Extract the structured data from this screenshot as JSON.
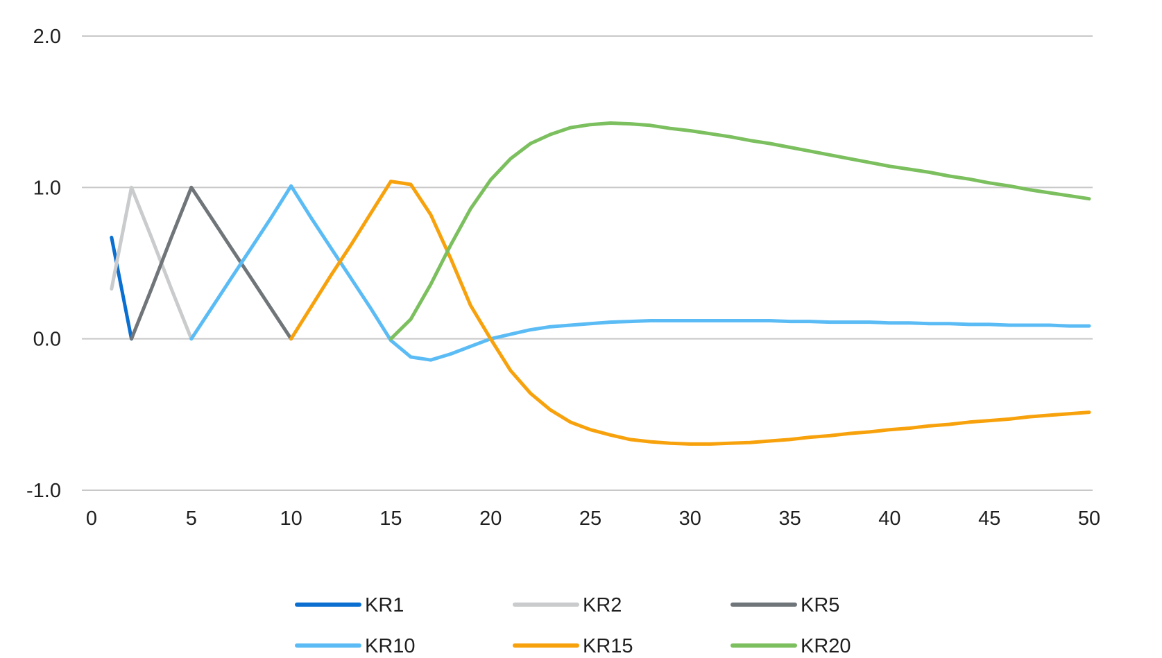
{
  "chart_data": {
    "type": "line",
    "title": "",
    "xlabel": "",
    "ylabel": "",
    "xlim": [
      0,
      50
    ],
    "ylim": [
      -1.0,
      2.0
    ],
    "x_ticks": [
      "0",
      "5",
      "10",
      "15",
      "20",
      "25",
      "30",
      "35",
      "40",
      "45",
      "50"
    ],
    "y_ticks": [
      "2.0",
      "1.0",
      "0.0",
      "-1.0"
    ],
    "grid": true,
    "legend_position": "bottom",
    "series": [
      {
        "name": "KR1",
        "color": "#0a6fd0",
        "points": [
          [
            1,
            0.67
          ],
          [
            2,
            0.0
          ]
        ]
      },
      {
        "name": "KR2",
        "color": "#c9cbcc",
        "points": [
          [
            1,
            0.33
          ],
          [
            2,
            1.0
          ],
          [
            3,
            0.67
          ],
          [
            4,
            0.33
          ],
          [
            5,
            0.0
          ]
        ]
      },
      {
        "name": "KR5",
        "color": "#6f7578",
        "points": [
          [
            2,
            0.0
          ],
          [
            3,
            0.33
          ],
          [
            4,
            0.67
          ],
          [
            5,
            1.0
          ],
          [
            6,
            0.8
          ],
          [
            7,
            0.6
          ],
          [
            8,
            0.4
          ],
          [
            9,
            0.2
          ],
          [
            10,
            0.0
          ]
        ]
      },
      {
        "name": "KR10",
        "color": "#5bbcf5",
        "points": [
          [
            5,
            0.0
          ],
          [
            6,
            0.2
          ],
          [
            7,
            0.4
          ],
          [
            8,
            0.6
          ],
          [
            9,
            0.8
          ],
          [
            10,
            1.01
          ],
          [
            11,
            0.8
          ],
          [
            12,
            0.6
          ],
          [
            13,
            0.4
          ],
          [
            14,
            0.2
          ],
          [
            15,
            -0.01
          ],
          [
            16,
            -0.12
          ],
          [
            17,
            -0.14
          ],
          [
            18,
            -0.1
          ],
          [
            19,
            -0.05
          ],
          [
            20,
            0.0
          ],
          [
            21,
            0.03
          ],
          [
            22,
            0.06
          ],
          [
            23,
            0.08
          ],
          [
            24,
            0.09
          ],
          [
            25,
            0.1
          ],
          [
            26,
            0.11
          ],
          [
            27,
            0.115
          ],
          [
            28,
            0.12
          ],
          [
            29,
            0.12
          ],
          [
            30,
            0.12
          ],
          [
            31,
            0.12
          ],
          [
            32,
            0.12
          ],
          [
            33,
            0.12
          ],
          [
            34,
            0.12
          ],
          [
            35,
            0.115
          ],
          [
            36,
            0.115
          ],
          [
            37,
            0.11
          ],
          [
            38,
            0.11
          ],
          [
            39,
            0.11
          ],
          [
            40,
            0.105
          ],
          [
            41,
            0.105
          ],
          [
            42,
            0.1
          ],
          [
            43,
            0.1
          ],
          [
            44,
            0.095
          ],
          [
            45,
            0.095
          ],
          [
            46,
            0.09
          ],
          [
            47,
            0.09
          ],
          [
            48,
            0.09
          ],
          [
            49,
            0.085
          ],
          [
            50,
            0.085
          ]
        ]
      },
      {
        "name": "KR15",
        "color": "#f7a20c",
        "points": [
          [
            10,
            0.0
          ],
          [
            11,
            0.21
          ],
          [
            12,
            0.42
          ],
          [
            13,
            0.62
          ],
          [
            14,
            0.83
          ],
          [
            15,
            1.04
          ],
          [
            16,
            1.02
          ],
          [
            17,
            0.82
          ],
          [
            18,
            0.53
          ],
          [
            19,
            0.22
          ],
          [
            20,
            0.0
          ],
          [
            21,
            -0.21
          ],
          [
            22,
            -0.36
          ],
          [
            23,
            -0.47
          ],
          [
            24,
            -0.55
          ],
          [
            25,
            -0.6
          ],
          [
            26,
            -0.635
          ],
          [
            27,
            -0.665
          ],
          [
            28,
            -0.68
          ],
          [
            29,
            -0.69
          ],
          [
            30,
            -0.695
          ],
          [
            31,
            -0.695
          ],
          [
            32,
            -0.69
          ],
          [
            33,
            -0.685
          ],
          [
            34,
            -0.675
          ],
          [
            35,
            -0.665
          ],
          [
            36,
            -0.65
          ],
          [
            37,
            -0.64
          ],
          [
            38,
            -0.625
          ],
          [
            39,
            -0.615
          ],
          [
            40,
            -0.6
          ],
          [
            41,
            -0.59
          ],
          [
            42,
            -0.575
          ],
          [
            43,
            -0.565
          ],
          [
            44,
            -0.55
          ],
          [
            45,
            -0.54
          ],
          [
            46,
            -0.53
          ],
          [
            47,
            -0.515
          ],
          [
            48,
            -0.505
          ],
          [
            49,
            -0.495
          ],
          [
            50,
            -0.485
          ]
        ]
      },
      {
        "name": "KR20",
        "color": "#7bbf5e",
        "points": [
          [
            15,
            0.0
          ],
          [
            16,
            0.13
          ],
          [
            17,
            0.36
          ],
          [
            18,
            0.62
          ],
          [
            19,
            0.86
          ],
          [
            20,
            1.05
          ],
          [
            21,
            1.19
          ],
          [
            22,
            1.29
          ],
          [
            23,
            1.35
          ],
          [
            24,
            1.395
          ],
          [
            25,
            1.415
          ],
          [
            26,
            1.425
          ],
          [
            27,
            1.42
          ],
          [
            28,
            1.41
          ],
          [
            29,
            1.39
          ],
          [
            30,
            1.375
          ],
          [
            31,
            1.355
          ],
          [
            32,
            1.335
          ],
          [
            33,
            1.31
          ],
          [
            34,
            1.29
          ],
          [
            35,
            1.265
          ],
          [
            36,
            1.24
          ],
          [
            37,
            1.215
          ],
          [
            38,
            1.19
          ],
          [
            39,
            1.165
          ],
          [
            40,
            1.14
          ],
          [
            41,
            1.12
          ],
          [
            42,
            1.1
          ],
          [
            43,
            1.075
          ],
          [
            44,
            1.055
          ],
          [
            45,
            1.03
          ],
          [
            46,
            1.01
          ],
          [
            47,
            0.985
          ],
          [
            48,
            0.965
          ],
          [
            49,
            0.945
          ],
          [
            50,
            0.925
          ]
        ]
      }
    ]
  }
}
